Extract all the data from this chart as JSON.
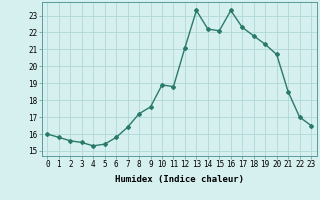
{
  "x": [
    0,
    1,
    2,
    3,
    4,
    5,
    6,
    7,
    8,
    9,
    10,
    11,
    12,
    13,
    14,
    15,
    16,
    17,
    18,
    19,
    20,
    21,
    22,
    23
  ],
  "y": [
    16.0,
    15.8,
    15.6,
    15.5,
    15.3,
    15.4,
    15.8,
    16.4,
    17.2,
    17.6,
    18.9,
    18.8,
    21.1,
    23.3,
    22.2,
    22.1,
    23.3,
    22.3,
    21.8,
    21.3,
    20.7,
    18.5,
    17.0,
    16.5
  ],
  "line_color": "#2a7a6a",
  "marker": "D",
  "marker_size": 2.0,
  "linewidth": 1.0,
  "bg_color": "#d6f0ef",
  "grid_color": "#b0d8d8",
  "xlabel": "Humidex (Indice chaleur)",
  "ylabel_ticks": [
    15,
    16,
    17,
    18,
    19,
    20,
    21,
    22,
    23
  ],
  "xlim": [
    -0.5,
    23.5
  ],
  "ylim": [
    14.7,
    23.8
  ],
  "tick_fontsize": 5.5,
  "xlabel_fontsize": 6.5
}
